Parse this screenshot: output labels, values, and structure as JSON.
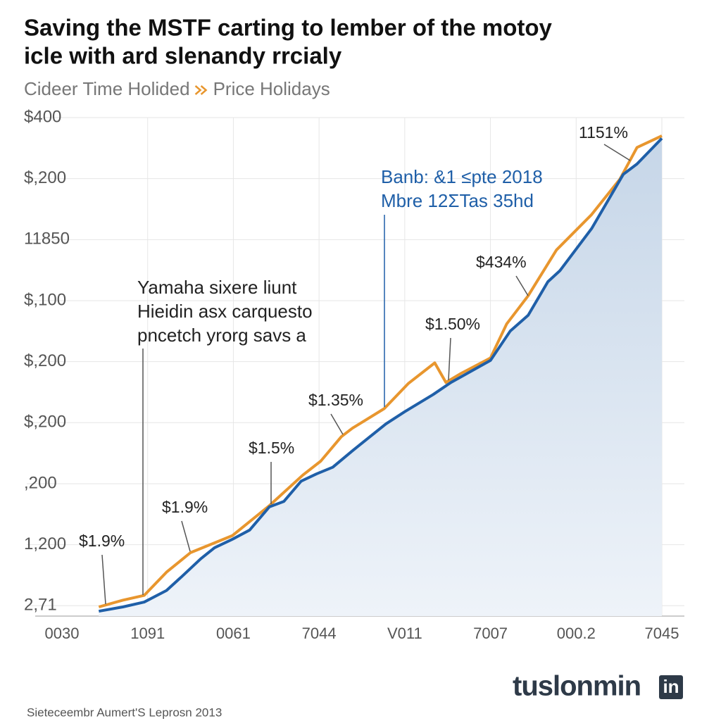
{
  "chart_data": {
    "type": "line",
    "title": [
      "Saving the MSTF carting to lember of the motoy",
      "icle with ard slenandy rrcialy"
    ],
    "series": [
      {
        "name": "Cideer Time Holided",
        "color": "#1f5fa8",
        "x": [
          0.43,
          0.71,
          0.96,
          1.22,
          1.4,
          1.62,
          1.78,
          1.99,
          2.19,
          2.42,
          2.59,
          2.79,
          2.97,
          3.16,
          3.39,
          3.78,
          4.0,
          4.33,
          4.54,
          5.0,
          5.23,
          5.44,
          5.67,
          5.81,
          6.18,
          6.55,
          6.71,
          7.0
        ],
        "values": [
          -0.09,
          -0.02,
          0.06,
          0.25,
          0.48,
          0.77,
          0.95,
          1.09,
          1.24,
          1.62,
          1.71,
          2.04,
          2.16,
          2.27,
          2.54,
          2.98,
          3.18,
          3.46,
          3.66,
          4.02,
          4.5,
          4.76,
          5.31,
          5.49,
          6.18,
          7.07,
          7.24,
          7.66
        ]
      },
      {
        "name": "Price Holidays",
        "color": "#e8962e",
        "x": [
          0.43,
          0.71,
          0.96,
          1.22,
          1.5,
          1.99,
          2.42,
          2.81,
          3.02,
          3.26,
          3.39,
          3.76,
          4.04,
          4.35,
          4.48,
          4.66,
          5.0,
          5.19,
          5.44,
          5.77,
          6.18,
          6.51,
          6.71,
          7.0
        ],
        "values": [
          -0.02,
          0.09,
          0.17,
          0.55,
          0.87,
          1.15,
          1.64,
          2.14,
          2.37,
          2.77,
          2.91,
          3.23,
          3.64,
          3.98,
          3.66,
          3.81,
          4.06,
          4.62,
          5.08,
          5.83,
          6.41,
          6.99,
          7.51,
          7.7
        ]
      }
    ],
    "xlim": [
      0,
      7
    ],
    "xticks": [
      {
        "value": 0,
        "label": "0030"
      },
      {
        "value": 1,
        "label": "1091"
      },
      {
        "value": 2,
        "label": "0061"
      },
      {
        "value": 3,
        "label": "7044"
      },
      {
        "value": 4,
        "label": "V011"
      },
      {
        "value": 5,
        "label": "7007"
      },
      {
        "value": 6,
        "label": "000.2"
      },
      {
        "value": 7,
        "label": "7045"
      }
    ],
    "ylim": [
      -0.17,
      8
    ],
    "yticks": [
      {
        "value": 0,
        "label": "2,71"
      },
      {
        "value": 1,
        "label": "1,200"
      },
      {
        "value": 2,
        "label": ",200"
      },
      {
        "value": 3,
        "label": "$,200"
      },
      {
        "value": 4,
        "label": "$,200"
      },
      {
        "value": 5,
        "label": "$,100"
      },
      {
        "value": 6,
        "label": "11850"
      },
      {
        "value": 7,
        "label": "$,200"
      },
      {
        "value": 8,
        "label": "$400"
      }
    ],
    "grid": true,
    "annotations": [
      {
        "lines": [
          "$1.9%"
        ]
      },
      {
        "lines": [
          "$1.9%"
        ]
      },
      {
        "lines": [
          "$1.5%"
        ]
      },
      {
        "lines": [
          "$1.35%"
        ]
      },
      {
        "lines": [
          "$1.50%"
        ]
      },
      {
        "lines": [
          "$434%"
        ]
      },
      {
        "lines": [
          "1151%"
        ]
      },
      {
        "lines": [
          "Yamaha sixere liunt",
          "Hieidin asx carquesto",
          "pncetch yrorg savs a"
        ]
      },
      {
        "lines": [
          "Banb: &1 ≤pte 2018",
          "Mbre 12ΣTas 35hd"
        ]
      }
    ],
    "source": "Sieteceembr Aumert'S Leprosn 2013",
    "logo": [
      "tuslonmin",
      "in"
    ]
  }
}
